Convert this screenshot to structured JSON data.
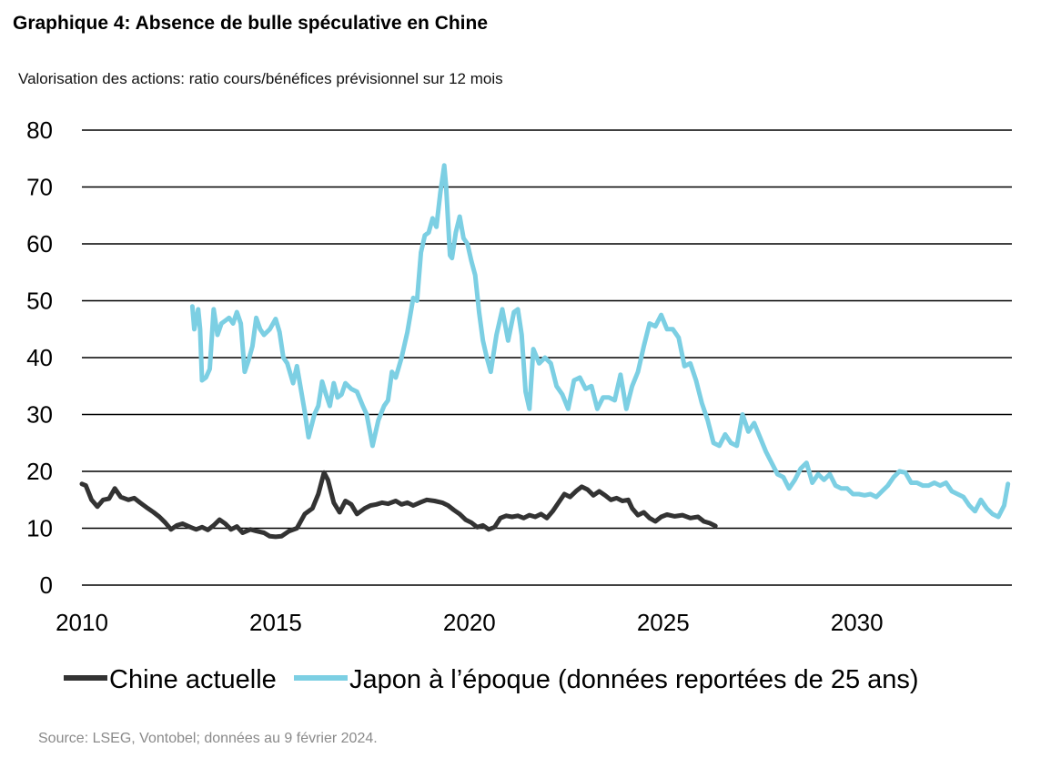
{
  "header": {
    "title": "Graphique 4: Absence de bulle spéculative en Chine",
    "subtitle": "Valorisation des actions: ratio cours/bénéfices prévisionnel sur 12 mois"
  },
  "footer": {
    "source": "Source: LSEG, Vontobel; données au 9 février 2024."
  },
  "chart_data": {
    "type": "line",
    "title": "",
    "xlabel": "",
    "ylabel": "",
    "xlim": [
      2010,
      2034
    ],
    "ylim": [
      0,
      80
    ],
    "grid": true,
    "legend_position": "bottom",
    "x_ticks": [
      "2010",
      "2015",
      "2020",
      "2025",
      "2030"
    ],
    "x_tick_values": [
      2010,
      2015,
      2020,
      2025,
      2030
    ],
    "y_ticks": [
      "0",
      "10",
      "20",
      "30",
      "40",
      "50",
      "60",
      "70",
      "80"
    ],
    "y_tick_values": [
      0,
      10,
      20,
      30,
      40,
      50,
      60,
      70,
      80
    ],
    "series": [
      {
        "name": "Chine actuelle",
        "color": "#333333",
        "points": [
          [
            2010.0,
            17.8
          ],
          [
            2010.1,
            17.5
          ],
          [
            2010.25,
            15
          ],
          [
            2010.4,
            13.8
          ],
          [
            2010.55,
            15
          ],
          [
            2010.7,
            15.2
          ],
          [
            2010.85,
            17
          ],
          [
            2011.0,
            15.5
          ],
          [
            2011.2,
            15
          ],
          [
            2011.35,
            15.3
          ],
          [
            2011.5,
            14.5
          ],
          [
            2011.7,
            13.5
          ],
          [
            2011.85,
            12.8
          ],
          [
            2012.0,
            12
          ],
          [
            2012.15,
            11
          ],
          [
            2012.3,
            9.8
          ],
          [
            2012.45,
            10.5
          ],
          [
            2012.6,
            10.8
          ],
          [
            2012.8,
            10.2
          ],
          [
            2012.95,
            9.8
          ],
          [
            2013.1,
            10.2
          ],
          [
            2013.25,
            9.7
          ],
          [
            2013.4,
            10.5
          ],
          [
            2013.55,
            11.5
          ],
          [
            2013.7,
            10.8
          ],
          [
            2013.85,
            9.8
          ],
          [
            2014.0,
            10.3
          ],
          [
            2014.15,
            9.2
          ],
          [
            2014.35,
            9.8
          ],
          [
            2014.5,
            9.5
          ],
          [
            2014.7,
            9.2
          ],
          [
            2014.85,
            8.6
          ],
          [
            2015.0,
            8.5
          ],
          [
            2015.15,
            8.6
          ],
          [
            2015.35,
            9.5
          ],
          [
            2015.55,
            10
          ],
          [
            2015.75,
            12.5
          ],
          [
            2015.95,
            13.5
          ],
          [
            2016.1,
            16
          ],
          [
            2016.25,
            19.8
          ],
          [
            2016.35,
            18.5
          ],
          [
            2016.5,
            14.5
          ],
          [
            2016.65,
            12.8
          ],
          [
            2016.8,
            14.8
          ],
          [
            2016.95,
            14.2
          ],
          [
            2017.1,
            12.5
          ],
          [
            2017.3,
            13.5
          ],
          [
            2017.45,
            14
          ],
          [
            2017.6,
            14.2
          ],
          [
            2017.75,
            14.5
          ],
          [
            2017.9,
            14.3
          ],
          [
            2018.1,
            14.8
          ],
          [
            2018.25,
            14.2
          ],
          [
            2018.4,
            14.5
          ],
          [
            2018.55,
            14
          ],
          [
            2018.75,
            14.6
          ],
          [
            2018.9,
            15
          ],
          [
            2019.1,
            14.8
          ],
          [
            2019.3,
            14.5
          ],
          [
            2019.45,
            14
          ],
          [
            2019.6,
            13.2
          ],
          [
            2019.75,
            12.5
          ],
          [
            2019.9,
            11.5
          ],
          [
            2020.05,
            11
          ],
          [
            2020.2,
            10.2
          ],
          [
            2020.35,
            10.5
          ],
          [
            2020.5,
            9.8
          ],
          [
            2020.65,
            10.2
          ],
          [
            2020.8,
            11.8
          ],
          [
            2020.95,
            12.2
          ],
          [
            2021.1,
            12
          ],
          [
            2021.25,
            12.2
          ],
          [
            2021.4,
            11.8
          ],
          [
            2021.55,
            12.3
          ],
          [
            2021.7,
            12
          ],
          [
            2021.85,
            12.5
          ],
          [
            2022.0,
            11.8
          ],
          [
            2022.15,
            13
          ],
          [
            2022.3,
            14.5
          ],
          [
            2022.45,
            16
          ],
          [
            2022.6,
            15.5
          ],
          [
            2022.75,
            16.5
          ],
          [
            2022.9,
            17.3
          ],
          [
            2023.05,
            16.8
          ],
          [
            2023.2,
            15.8
          ],
          [
            2023.35,
            16.5
          ],
          [
            2023.5,
            15.8
          ],
          [
            2023.65,
            15
          ],
          [
            2023.8,
            15.3
          ],
          [
            2023.95,
            14.8
          ],
          [
            2024.1,
            15
          ],
          [
            2024.2,
            13.5
          ],
          [
            2024.35,
            12.3
          ],
          [
            2024.5,
            12.8
          ],
          [
            2024.65,
            11.8
          ],
          [
            2024.8,
            11.2
          ],
          [
            2024.95,
            12
          ],
          [
            2025.1,
            12.4
          ],
          [
            2025.3,
            12.1
          ],
          [
            2025.5,
            12.3
          ],
          [
            2025.7,
            11.8
          ],
          [
            2025.9,
            12
          ],
          [
            2026.05,
            11.2
          ],
          [
            2026.2,
            10.9
          ],
          [
            2026.35,
            10.4
          ]
        ]
      },
      {
        "name": "Japon à l’époque (données reportées de 25 ans)",
        "color": "#7ccfe3",
        "points": [
          [
            2012.85,
            49
          ],
          [
            2012.9,
            45
          ],
          [
            2013.0,
            48.5
          ],
          [
            2013.05,
            45
          ],
          [
            2013.1,
            36
          ],
          [
            2013.2,
            36.5
          ],
          [
            2013.3,
            38
          ],
          [
            2013.4,
            48.5
          ],
          [
            2013.5,
            44
          ],
          [
            2013.6,
            46
          ],
          [
            2013.7,
            46.5
          ],
          [
            2013.8,
            47
          ],
          [
            2013.9,
            46
          ],
          [
            2014.0,
            48
          ],
          [
            2014.1,
            46
          ],
          [
            2014.2,
            37.5
          ],
          [
            2014.3,
            39.5
          ],
          [
            2014.4,
            42
          ],
          [
            2014.5,
            47
          ],
          [
            2014.6,
            45
          ],
          [
            2014.7,
            44
          ],
          [
            2014.85,
            45
          ],
          [
            2015.0,
            46.8
          ],
          [
            2015.1,
            44.5
          ],
          [
            2015.2,
            40
          ],
          [
            2015.3,
            39
          ],
          [
            2015.45,
            35.5
          ],
          [
            2015.55,
            38.5
          ],
          [
            2015.65,
            34.5
          ],
          [
            2015.75,
            30.5
          ],
          [
            2015.85,
            26
          ],
          [
            2016.0,
            30
          ],
          [
            2016.1,
            31.5
          ],
          [
            2016.2,
            35.8
          ],
          [
            2016.3,
            33.5
          ],
          [
            2016.4,
            31.5
          ],
          [
            2016.5,
            35.5
          ],
          [
            2016.6,
            33
          ],
          [
            2016.7,
            33.5
          ],
          [
            2016.8,
            35.5
          ],
          [
            2016.95,
            34.5
          ],
          [
            2017.1,
            34
          ],
          [
            2017.25,
            31.5
          ],
          [
            2017.35,
            30
          ],
          [
            2017.5,
            24.5
          ],
          [
            2017.65,
            29
          ],
          [
            2017.8,
            31.5
          ],
          [
            2017.9,
            32.5
          ],
          [
            2018.0,
            37.5
          ],
          [
            2018.1,
            36.5
          ],
          [
            2018.25,
            40
          ],
          [
            2018.4,
            44.5
          ],
          [
            2018.55,
            50.5
          ],
          [
            2018.65,
            50
          ],
          [
            2018.75,
            58.5
          ],
          [
            2018.85,
            61.5
          ],
          [
            2018.95,
            62
          ],
          [
            2019.05,
            64.5
          ],
          [
            2019.15,
            63
          ],
          [
            2019.25,
            69
          ],
          [
            2019.35,
            73.8
          ],
          [
            2019.4,
            70
          ],
          [
            2019.5,
            58
          ],
          [
            2019.55,
            57.5
          ],
          [
            2019.65,
            62
          ],
          [
            2019.75,
            64.8
          ],
          [
            2019.85,
            61
          ],
          [
            2019.95,
            60
          ],
          [
            2020.05,
            57
          ],
          [
            2020.15,
            54.5
          ],
          [
            2020.25,
            48
          ],
          [
            2020.35,
            43
          ],
          [
            2020.45,
            40
          ],
          [
            2020.55,
            37.5
          ],
          [
            2020.7,
            44
          ],
          [
            2020.85,
            48.5
          ],
          [
            2021.0,
            43
          ],
          [
            2021.15,
            48
          ],
          [
            2021.25,
            48.5
          ],
          [
            2021.35,
            44
          ],
          [
            2021.45,
            34
          ],
          [
            2021.55,
            31
          ],
          [
            2021.65,
            41.5
          ],
          [
            2021.8,
            39
          ],
          [
            2021.95,
            40
          ],
          [
            2022.1,
            39
          ],
          [
            2022.25,
            35
          ],
          [
            2022.4,
            33.5
          ],
          [
            2022.55,
            31
          ],
          [
            2022.7,
            36
          ],
          [
            2022.85,
            36.5
          ],
          [
            2023.0,
            34.5
          ],
          [
            2023.15,
            35
          ],
          [
            2023.3,
            31
          ],
          [
            2023.45,
            33
          ],
          [
            2023.6,
            33
          ],
          [
            2023.75,
            32.5
          ],
          [
            2023.9,
            37
          ],
          [
            2024.05,
            31
          ],
          [
            2024.2,
            35
          ],
          [
            2024.35,
            37.5
          ],
          [
            2024.5,
            42
          ],
          [
            2024.65,
            46
          ],
          [
            2024.8,
            45.5
          ],
          [
            2024.95,
            47.5
          ],
          [
            2025.1,
            45
          ],
          [
            2025.25,
            45
          ],
          [
            2025.4,
            43.5
          ],
          [
            2025.55,
            38.5
          ],
          [
            2025.7,
            39
          ],
          [
            2025.85,
            36
          ],
          [
            2026.0,
            32
          ],
          [
            2026.15,
            29
          ],
          [
            2026.3,
            25
          ],
          [
            2026.45,
            24.5
          ],
          [
            2026.6,
            26.5
          ],
          [
            2026.75,
            25
          ],
          [
            2026.9,
            24.5
          ],
          [
            2027.05,
            30
          ],
          [
            2027.2,
            27
          ],
          [
            2027.35,
            28.5
          ],
          [
            2027.5,
            26
          ],
          [
            2027.65,
            23.5
          ],
          [
            2027.8,
            21.5
          ],
          [
            2027.95,
            19.5
          ],
          [
            2028.1,
            19
          ],
          [
            2028.25,
            17
          ],
          [
            2028.4,
            18.5
          ],
          [
            2028.55,
            20.5
          ],
          [
            2028.7,
            21.5
          ],
          [
            2028.85,
            18
          ],
          [
            2029.0,
            19.5
          ],
          [
            2029.15,
            18.5
          ],
          [
            2029.3,
            19.5
          ],
          [
            2029.45,
            17.5
          ],
          [
            2029.6,
            17
          ],
          [
            2029.75,
            17
          ],
          [
            2029.9,
            16
          ],
          [
            2030.05,
            16
          ],
          [
            2030.2,
            15.8
          ],
          [
            2030.35,
            16
          ],
          [
            2030.5,
            15.5
          ],
          [
            2030.65,
            16.5
          ],
          [
            2030.8,
            17.5
          ],
          [
            2030.95,
            19
          ],
          [
            2031.1,
            20
          ],
          [
            2031.25,
            19.8
          ],
          [
            2031.4,
            18
          ],
          [
            2031.55,
            18
          ],
          [
            2031.7,
            17.5
          ],
          [
            2031.85,
            17.5
          ],
          [
            2032.0,
            18
          ],
          [
            2032.15,
            17.5
          ],
          [
            2032.3,
            18
          ],
          [
            2032.45,
            16.5
          ],
          [
            2032.6,
            16
          ],
          [
            2032.75,
            15.5
          ],
          [
            2032.9,
            14
          ],
          [
            2033.05,
            13
          ],
          [
            2033.2,
            15
          ],
          [
            2033.35,
            13.5
          ],
          [
            2033.5,
            12.5
          ],
          [
            2033.65,
            12
          ],
          [
            2033.8,
            14
          ],
          [
            2033.9,
            17.8
          ]
        ]
      }
    ]
  }
}
